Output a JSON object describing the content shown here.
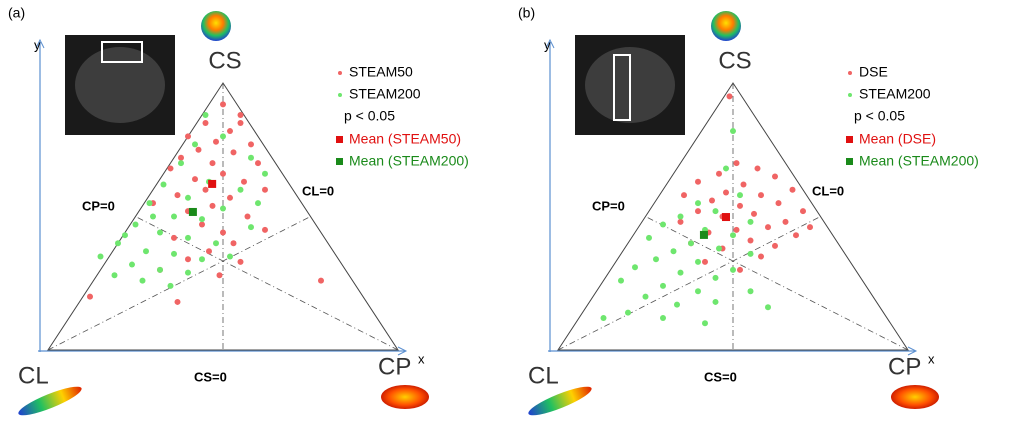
{
  "chart_data": [
    {
      "type": "scatter",
      "panel_label": "(a)",
      "xlabel": "x",
      "ylabel": "y",
      "xlim": [
        0,
        1
      ],
      "ylim": [
        0,
        1.15
      ],
      "vertex_labels": [
        "CL",
        "CP",
        "CS"
      ],
      "zero_labels": [
        "CP=0",
        "CL=0",
        "CS=0"
      ],
      "note": "p < 0.05",
      "series": [
        {
          "name": "STEAM50",
          "color": "#f06464",
          "marker": "circle",
          "x": [
            0.5,
            0.55,
            0.45,
            0.52,
            0.4,
            0.48,
            0.58,
            0.43,
            0.53,
            0.38,
            0.47,
            0.6,
            0.35,
            0.5,
            0.42,
            0.56,
            0.45,
            0.62,
            0.37,
            0.52,
            0.47,
            0.4,
            0.57,
            0.44,
            0.5,
            0.36,
            0.53,
            0.46,
            0.4,
            0.55,
            0.32,
            0.49,
            0.12,
            0.37,
            0.78,
            0.62,
            0.3,
            0.55
          ],
          "values": [
            0.92,
            0.88,
            0.85,
            0.82,
            0.8,
            0.78,
            0.77,
            0.75,
            0.74,
            0.72,
            0.7,
            0.7,
            0.68,
            0.66,
            0.64,
            0.63,
            0.6,
            0.6,
            0.58,
            0.57,
            0.54,
            0.52,
            0.5,
            0.47,
            0.44,
            0.42,
            0.4,
            0.37,
            0.34,
            0.33,
            0.3,
            0.28,
            0.2,
            0.18,
            0.26,
            0.45,
            0.55,
            0.85
          ]
        },
        {
          "name": "STEAM200",
          "color": "#6ee66e",
          "marker": "circle",
          "x": [
            0.45,
            0.5,
            0.42,
            0.58,
            0.38,
            0.62,
            0.46,
            0.33,
            0.55,
            0.4,
            0.29,
            0.5,
            0.36,
            0.44,
            0.25,
            0.58,
            0.32,
            0.4,
            0.2,
            0.48,
            0.28,
            0.36,
            0.15,
            0.44,
            0.24,
            0.32,
            0.4,
            0.19,
            0.27,
            0.35,
            0.52,
            0.6,
            0.22,
            0.3
          ],
          "values": [
            0.88,
            0.8,
            0.77,
            0.72,
            0.7,
            0.66,
            0.63,
            0.62,
            0.6,
            0.57,
            0.55,
            0.53,
            0.5,
            0.49,
            0.47,
            0.46,
            0.44,
            0.42,
            0.4,
            0.4,
            0.37,
            0.36,
            0.35,
            0.34,
            0.32,
            0.3,
            0.29,
            0.28,
            0.26,
            0.24,
            0.35,
            0.55,
            0.43,
            0.5
          ]
        },
        {
          "name": "Mean (STEAM50)",
          "color": "#e01010",
          "marker": "square",
          "x": [
            0.469
          ],
          "values": [
            0.622
          ]
        },
        {
          "name": "Mean (STEAM200)",
          "color": "#1a8a1a",
          "marker": "square",
          "x": [
            0.414
          ],
          "values": [
            0.517
          ]
        }
      ]
    },
    {
      "type": "scatter",
      "panel_label": "(b)",
      "xlabel": "x",
      "ylabel": "y",
      "xlim": [
        0,
        1
      ],
      "ylim": [
        0,
        1.15
      ],
      "vertex_labels": [
        "CL",
        "CP",
        "CS"
      ],
      "zero_labels": [
        "CP=0",
        "CL=0",
        "CS=0"
      ],
      "note": "p < 0.05",
      "series": [
        {
          "name": "DSE",
          "color": "#f06464",
          "marker": "circle",
          "x": [
            0.49,
            0.51,
            0.57,
            0.46,
            0.62,
            0.4,
            0.53,
            0.67,
            0.48,
            0.58,
            0.36,
            0.44,
            0.63,
            0.52,
            0.7,
            0.4,
            0.56,
            0.47,
            0.65,
            0.35,
            0.6,
            0.51,
            0.43,
            0.68,
            0.55,
            0.38,
            0.62,
            0.47,
            0.58,
            0.42,
            0.52,
            0.72
          ],
          "values": [
            0.95,
            0.7,
            0.68,
            0.66,
            0.65,
            0.63,
            0.62,
            0.6,
            0.59,
            0.58,
            0.58,
            0.56,
            0.55,
            0.54,
            0.52,
            0.52,
            0.51,
            0.5,
            0.48,
            0.48,
            0.46,
            0.45,
            0.44,
            0.43,
            0.41,
            0.4,
            0.39,
            0.38,
            0.35,
            0.33,
            0.3,
            0.46
          ]
        },
        {
          "name": "STEAM200",
          "color": "#6ee66e",
          "marker": "circle",
          "x": [
            0.5,
            0.48,
            0.52,
            0.4,
            0.45,
            0.35,
            0.55,
            0.3,
            0.42,
            0.5,
            0.26,
            0.38,
            0.46,
            0.33,
            0.55,
            0.28,
            0.4,
            0.5,
            0.22,
            0.35,
            0.45,
            0.3,
            0.4,
            0.25,
            0.34,
            0.45,
            0.2,
            0.3,
            0.13,
            0.42,
            0.55,
            0.6,
            0.18
          ],
          "values": [
            0.82,
            0.68,
            0.58,
            0.55,
            0.52,
            0.5,
            0.48,
            0.47,
            0.45,
            0.43,
            0.42,
            0.4,
            0.38,
            0.37,
            0.36,
            0.34,
            0.33,
            0.3,
            0.31,
            0.29,
            0.27,
            0.24,
            0.22,
            0.2,
            0.17,
            0.18,
            0.14,
            0.12,
            0.12,
            0.1,
            0.22,
            0.16,
            0.26
          ]
        },
        {
          "name": "Mean (DSE)",
          "color": "#e01010",
          "marker": "square",
          "x": [
            0.48
          ],
          "values": [
            0.498
          ]
        },
        {
          "name": "Mean (STEAM200)",
          "color": "#1a8a1a",
          "marker": "square",
          "x": [
            0.417
          ],
          "values": [
            0.431
          ]
        }
      ]
    }
  ]
}
